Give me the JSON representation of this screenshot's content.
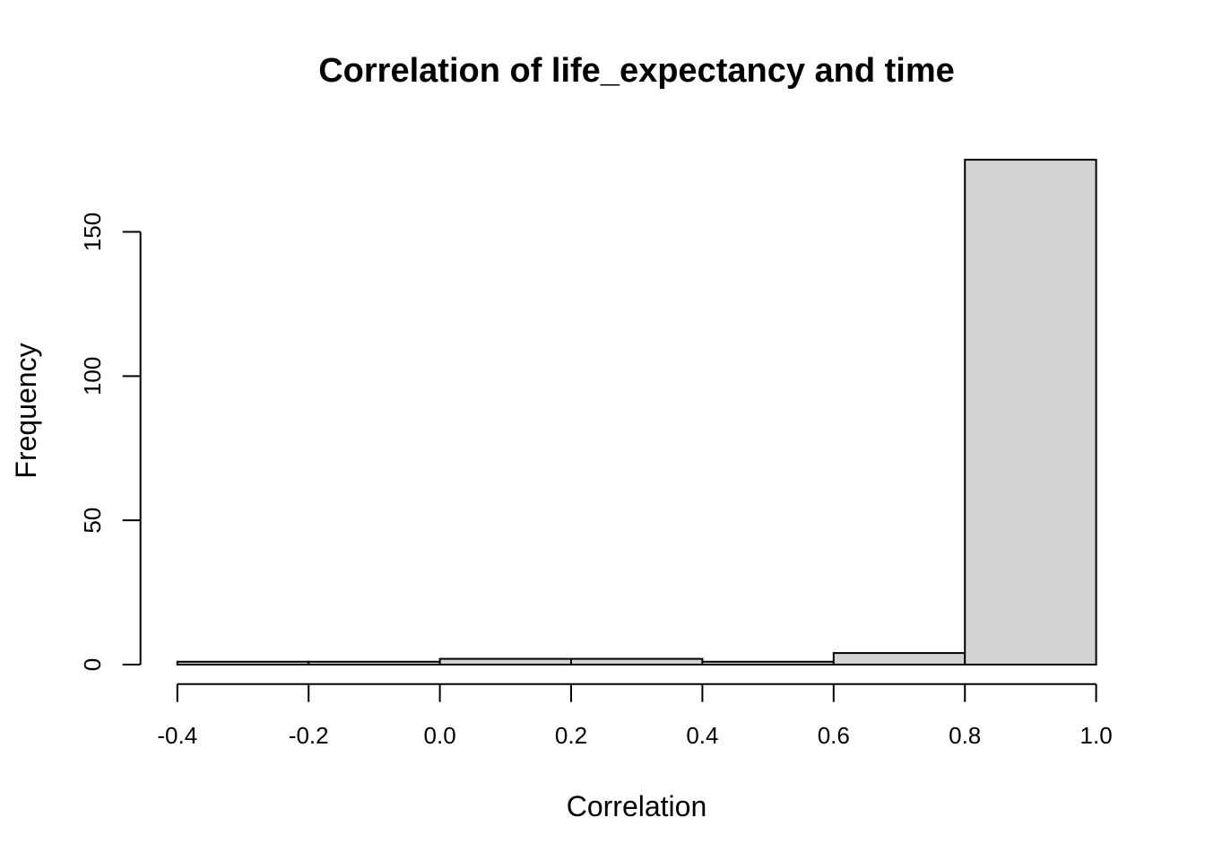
{
  "figure": {
    "kind": "R base histogram plot",
    "background": "#ffffff"
  },
  "chart_data": {
    "type": "bar",
    "subtype": "histogram",
    "title": "Correlation of life_expectancy and time",
    "xlabel": "Correlation",
    "ylabel": "Frequency",
    "breaks": [
      -0.4,
      -0.2,
      0.0,
      0.2,
      0.4,
      0.6,
      0.8,
      1.0
    ],
    "counts": [
      1,
      1,
      2,
      2,
      1,
      4,
      175
    ],
    "x_ticks": [
      -0.4,
      -0.2,
      0.0,
      0.2,
      0.4,
      0.6,
      0.8,
      1.0
    ],
    "x_tick_labels": [
      "-0.4",
      "-0.2",
      "0.0",
      "0.2",
      "0.4",
      "0.6",
      "0.8",
      "1.0"
    ],
    "y_ticks": [
      0,
      50,
      100,
      150
    ],
    "y_tick_labels": [
      "0",
      "50",
      "100",
      "150"
    ],
    "xlim": [
      -0.4,
      1.0
    ],
    "ylim": [
      0,
      175
    ],
    "grid": false,
    "legend": false,
    "colors": {
      "bar_fill": "#d3d3d3",
      "bar_stroke": "#000000",
      "axis": "#000000",
      "text": "#000000",
      "background": "#ffffff"
    }
  }
}
